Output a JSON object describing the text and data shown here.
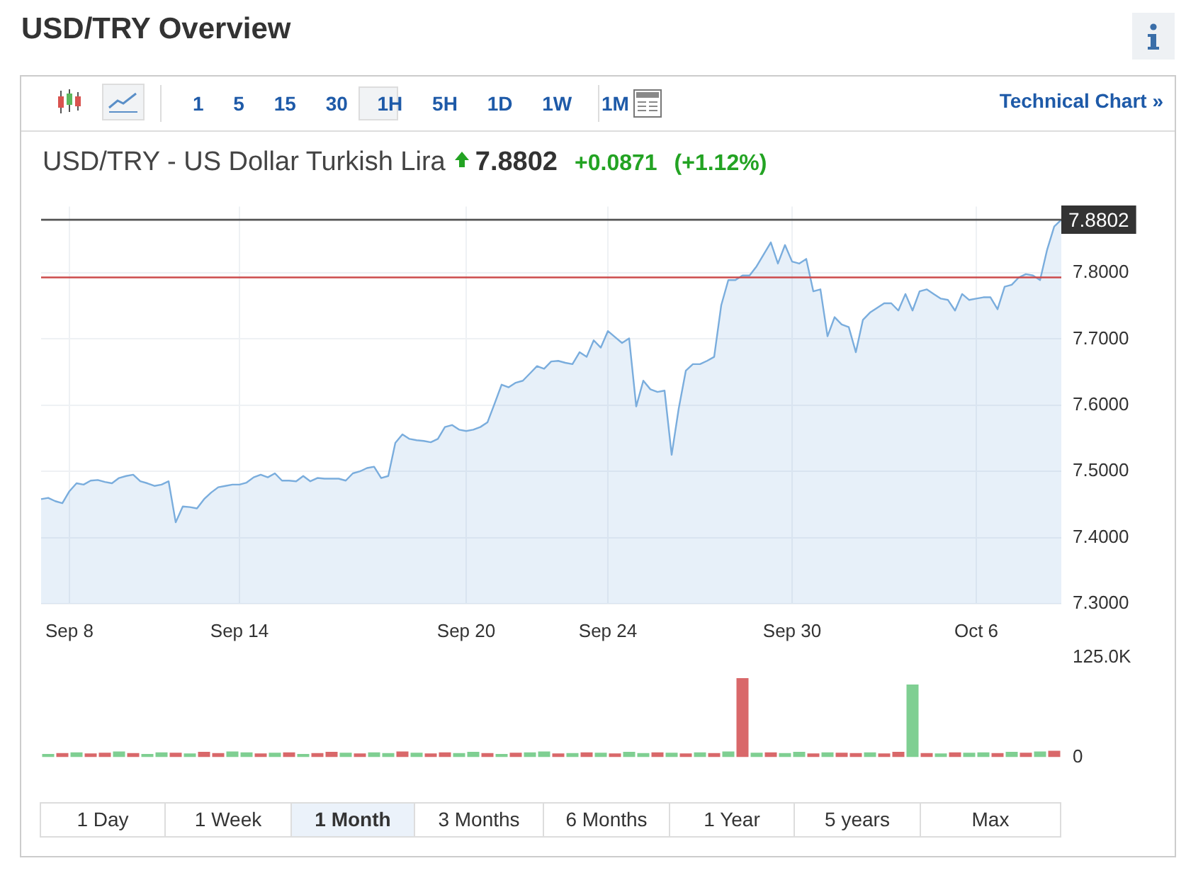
{
  "chart_data": [
    {
      "type": "area",
      "title": "USD/TRY Overview",
      "subtitle": "USD/TRY - US Dollar Turkish Lira",
      "annotations": [
        "7.8802",
        "+0.0871",
        "(+1.12%)",
        "1 5 15 30 1H 5H 1D 1W 1M",
        "Technical Chart »",
        "1 Day",
        "1 Week",
        "1 Month",
        "3 Months",
        "6 Months",
        "1 Year",
        "5 years",
        "Max"
      ],
      "categories": [
        null,
        null,
        null,
        null,
        "Sep 8",
        null,
        null,
        null,
        null,
        null,
        null,
        null,
        null,
        null,
        null,
        null,
        null,
        null,
        null,
        null,
        null,
        null,
        null,
        null,
        null,
        null,
        null,
        null,
        "Sep 14",
        null,
        null,
        null,
        null,
        null,
        null,
        null,
        null,
        null,
        null,
        null,
        null,
        null,
        null,
        null,
        null,
        null,
        null,
        null,
        null,
        null,
        null,
        null,
        null,
        null,
        null,
        null,
        null,
        null,
        null,
        null,
        "Sep 20",
        null,
        null,
        null,
        null,
        null,
        null,
        null,
        null,
        null,
        null,
        null,
        null,
        null,
        null,
        null,
        null,
        null,
        null,
        null,
        "Sep 24",
        null,
        null,
        null,
        null,
        null,
        null,
        null,
        null,
        null,
        null,
        null,
        null,
        null,
        null,
        null,
        null,
        null,
        null,
        null,
        null,
        null,
        null,
        null,
        null,
        null,
        "Sep 30",
        null,
        null,
        null,
        null,
        null,
        null,
        null,
        null,
        null,
        null,
        null,
        null,
        null,
        null,
        null,
        null,
        null,
        null,
        null,
        null,
        null,
        null,
        null,
        null,
        null,
        "Oct 6",
        null,
        null,
        null,
        null,
        null,
        null,
        null,
        null,
        null,
        null,
        null,
        null
      ],
      "series": [
        {
          "color": "#7aaddd",
          "values": [
            7.458,
            7.46,
            7.455,
            7.452,
            7.47,
            7.482,
            7.48,
            7.486,
            7.487,
            7.484,
            7.482,
            7.49,
            7.493,
            7.495,
            7.485,
            7.482,
            7.478,
            7.48,
            7.485,
            7.423,
            7.447,
            7.446,
            7.444,
            7.458,
            7.468,
            7.476,
            7.478,
            7.48,
            7.48,
            7.483,
            7.491,
            7.495,
            7.491,
            7.497,
            7.486,
            7.486,
            7.485,
            7.493,
            7.485,
            7.49,
            7.489,
            7.489,
            7.489,
            7.486,
            7.497,
            7.5,
            7.505,
            7.507,
            7.49,
            7.493,
            7.543,
            7.556,
            7.549,
            7.547,
            7.546,
            7.544,
            7.549,
            7.567,
            7.57,
            7.563,
            7.561,
            7.563,
            7.567,
            7.574,
            7.602,
            7.631,
            7.627,
            7.634,
            7.637,
            7.648,
            7.659,
            7.655,
            7.666,
            7.667,
            7.664,
            7.662,
            7.68,
            7.673,
            7.698,
            7.687,
            7.712,
            7.703,
            7.694,
            7.701,
            7.598,
            7.637,
            7.624,
            7.62,
            7.622,
            7.525,
            7.595,
            7.652,
            7.662,
            7.662,
            7.667,
            7.673,
            7.751,
            7.789,
            7.789,
            7.796,
            7.796,
            7.81,
            7.828,
            7.846,
            7.814,
            7.842,
            7.817,
            7.814,
            7.821,
            7.772,
            7.775,
            7.704,
            7.733,
            7.722,
            7.718,
            7.68,
            7.729,
            7.74,
            7.747,
            7.754,
            7.754,
            7.743,
            7.768,
            7.743,
            7.772,
            7.775,
            7.768,
            7.761,
            7.759,
            7.743,
            7.768,
            7.759,
            7.761,
            7.763,
            7.763,
            7.745,
            7.779,
            7.782,
            7.793,
            7.798,
            7.796,
            7.789,
            7.835,
            7.87,
            7.8802
          ]
        }
      ],
      "ylim": [
        7.3,
        7.9
      ],
      "yticks": [
        {
          "value": 7.3,
          "label": "7.3000"
        },
        {
          "value": 7.4,
          "label": "7.4000"
        },
        {
          "value": 7.5,
          "label": "7.5000"
        },
        {
          "value": 7.6,
          "label": "7.6000"
        },
        {
          "value": 7.7,
          "label": "7.7000"
        },
        {
          "value": 7.8,
          "label": "7.8000"
        }
      ],
      "ref_lines": [
        {
          "axis": "y",
          "value": 7.8802,
          "label": "7.8802",
          "color": "#555555"
        },
        {
          "axis": "y",
          "value": 7.7931,
          "color": "#cc4b4b"
        }
      ],
      "grid": true,
      "marker": "none"
    },
    {
      "type": "bar",
      "categories": [
        null,
        null,
        null,
        null,
        null,
        null,
        null,
        null,
        null,
        null,
        null,
        null,
        null,
        null,
        null,
        null,
        null,
        null,
        null,
        null,
        null,
        null,
        null,
        null,
        null,
        null,
        null,
        null,
        null,
        null,
        null,
        null,
        null,
        null,
        null,
        null,
        null,
        null,
        null,
        null,
        null,
        null,
        null,
        null,
        null,
        null,
        null,
        null,
        null,
        null,
        null,
        null,
        null,
        null,
        null,
        null,
        null,
        null,
        null,
        null,
        null,
        null,
        null,
        null,
        null,
        null,
        null,
        null,
        null,
        null,
        null,
        null
      ],
      "values": [
        4000,
        5000,
        6000,
        4500,
        5500,
        7000,
        5000,
        4000,
        6000,
        5500,
        4500,
        6500,
        5000,
        7000,
        6000,
        4500,
        5500,
        6000,
        4000,
        5000,
        6500,
        5500,
        4500,
        6000,
        5000,
        7000,
        5500,
        4500,
        6000,
        5000,
        6500,
        5000,
        4000,
        5500,
        6000,
        7000,
        4500,
        5000,
        6000,
        5500,
        4500,
        6500,
        5000,
        6000,
        5500,
        4500,
        6000,
        5000,
        7000,
        99000,
        5500,
        6000,
        5000,
        6500,
        4500,
        6000,
        5500,
        5000,
        6000,
        4500,
        6500,
        91000,
        5000,
        4500,
        6000,
        5500,
        6000,
        5000,
        6500,
        5500,
        7000,
        8000
      ],
      "colors": [
        "#7fcf92",
        "#d9686a",
        "#7fcf92",
        "#d9686a",
        "#d9686a",
        "#7fcf92",
        "#d9686a",
        "#7fcf92",
        "#7fcf92",
        "#d9686a",
        "#7fcf92",
        "#d9686a",
        "#d9686a",
        "#7fcf92",
        "#7fcf92",
        "#d9686a",
        "#7fcf92",
        "#d9686a",
        "#7fcf92",
        "#d9686a",
        "#d9686a",
        "#7fcf92",
        "#d9686a",
        "#7fcf92",
        "#7fcf92",
        "#d9686a",
        "#7fcf92",
        "#d9686a",
        "#d9686a",
        "#7fcf92",
        "#7fcf92",
        "#d9686a",
        "#7fcf92",
        "#d9686a",
        "#7fcf92",
        "#7fcf92",
        "#d9686a",
        "#7fcf92",
        "#d9686a",
        "#7fcf92",
        "#d9686a",
        "#7fcf92",
        "#7fcf92",
        "#d9686a",
        "#7fcf92",
        "#d9686a",
        "#7fcf92",
        "#d9686a",
        "#7fcf92",
        "#d9686a",
        "#7fcf92",
        "#d9686a",
        "#7fcf92",
        "#7fcf92",
        "#d9686a",
        "#7fcf92",
        "#d9686a",
        "#d9686a",
        "#7fcf92",
        "#d9686a",
        "#d9686a",
        "#7fcf92",
        "#d9686a",
        "#7fcf92",
        "#d9686a",
        "#7fcf92",
        "#7fcf92",
        "#d9686a",
        "#7fcf92",
        "#d9686a",
        "#7fcf92",
        "#d9686a"
      ],
      "ylim": [
        0,
        125000
      ],
      "yticks": [
        0,
        {
          "value": 125000,
          "label": "125.0K"
        }
      ],
      "tick_labels": "y"
    }
  ]
}
